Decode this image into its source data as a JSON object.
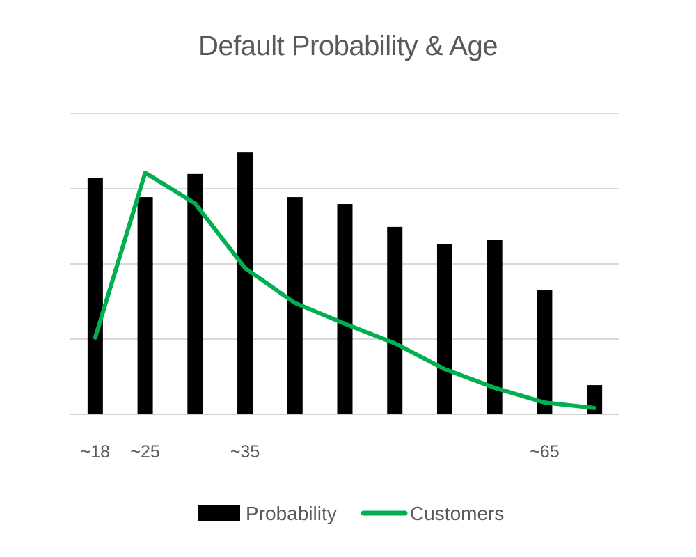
{
  "chart_data": {
    "type": "bar",
    "title": "Default Probability & Age",
    "xlabel": "",
    "ylabel": "",
    "categories": [
      "~18",
      "~25",
      "",
      "~35",
      "",
      "",
      "",
      "",
      "",
      "~65",
      ""
    ],
    "ylim": [
      0,
      100
    ],
    "grid": true,
    "y_tick_labels_shown": false,
    "legend_position": "bottom",
    "series": [
      {
        "name": "Probability",
        "type": "bar",
        "color": "#000000",
        "values": [
          78.7,
          72.2,
          79.9,
          87.0,
          72.2,
          69.9,
          62.3,
          56.7,
          57.9,
          41.2,
          9.7
        ]
      },
      {
        "name": "Customers",
        "type": "line",
        "color": "#00b050",
        "values": [
          25.5,
          80.3,
          70.1,
          48.6,
          37.0,
          30.1,
          23.6,
          15.0,
          8.8,
          3.9,
          2.1
        ]
      }
    ]
  }
}
